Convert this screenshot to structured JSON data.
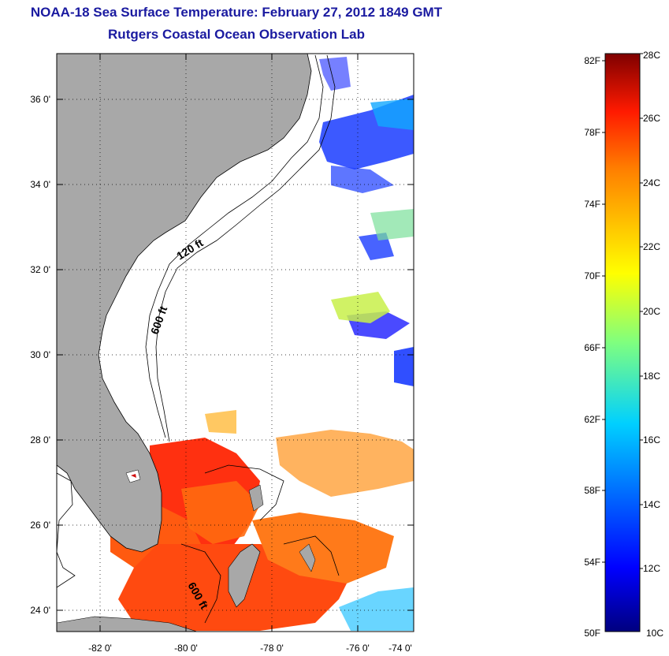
{
  "title": "NOAA-18 Sea Surface Temperature:  February 27, 2012 1849 GMT",
  "subtitle": "Rutgers Coastal Ocean Observation Lab",
  "map": {
    "lat_labels": [
      "36 0'",
      "34 0'",
      "32 0'",
      "30 0'",
      "28 0'",
      "26 0'",
      "24 0'"
    ],
    "lon_labels": [
      "-82 0'",
      "-80 0'",
      "-78 0'",
      "-76 0'",
      "-74 0'"
    ],
    "contour_labels": [
      "120 ft",
      "600 ft",
      "600 ft"
    ],
    "land_color": "#a8a8a8"
  },
  "colorbar": {
    "f_labels": [
      "82F",
      "78F",
      "74F",
      "70F",
      "66F",
      "62F",
      "58F",
      "54F",
      "50F"
    ],
    "c_labels": [
      "28C",
      "26C",
      "24C",
      "22C",
      "20C",
      "18C",
      "16C",
      "14C",
      "12C",
      "10C"
    ],
    "range_f": [
      50,
      82
    ],
    "range_c": [
      10,
      28
    ],
    "colors": [
      "#00007f",
      "#0000ff",
      "#007fff",
      "#00ffff",
      "#7fff7f",
      "#ffff00",
      "#ff7f00",
      "#ff0000",
      "#7f0000"
    ]
  }
}
